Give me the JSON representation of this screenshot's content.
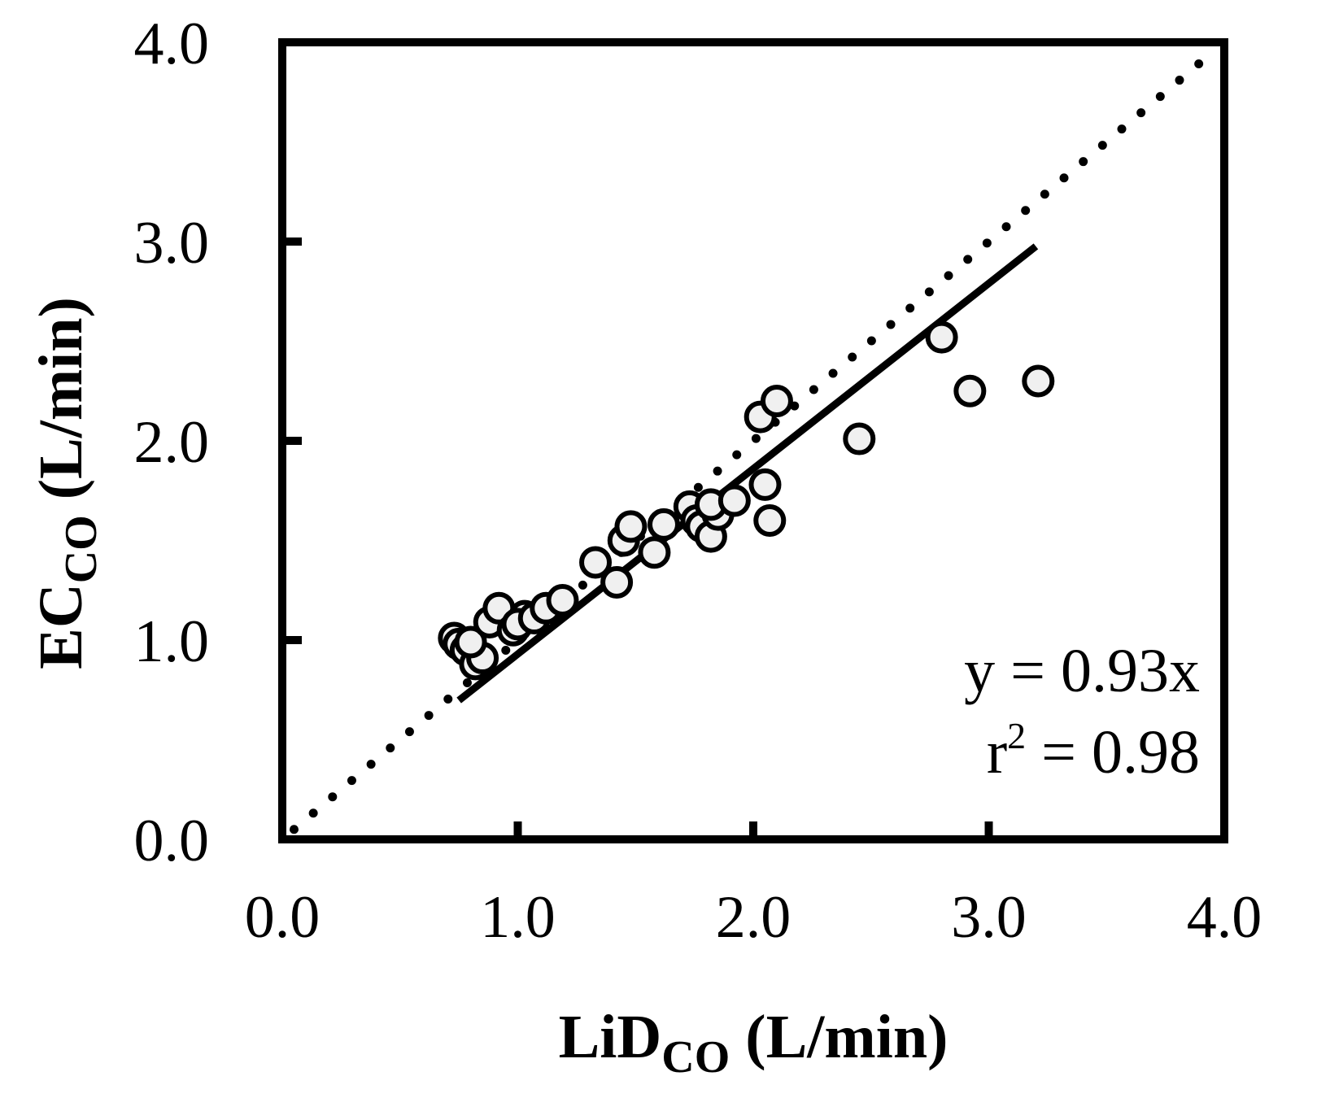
{
  "chart_data": {
    "type": "scatter",
    "xlabel": {
      "main": "LiD",
      "sub": "CO",
      "unit": " (L/min)"
    },
    "ylabel": {
      "main": "EC",
      "sub": "CO",
      "unit": " (L/min)"
    },
    "xlim": [
      0,
      4
    ],
    "ylim": [
      0,
      4
    ],
    "xticks": [
      "0.0",
      "1.0",
      "2.0",
      "3.0",
      "4.0"
    ],
    "yticks": [
      "0.0",
      "1.0",
      "2.0",
      "3.0",
      "4.0"
    ],
    "grid": false,
    "annotations": {
      "equation": "y = 0.93x",
      "r2_prefix": "r",
      "r2_sup": "2",
      "r2_value": " = 0.98"
    },
    "regression_line": {
      "slope": 0.93,
      "x_range": [
        0.75,
        3.2
      ]
    },
    "identity_line": {
      "slope": 1,
      "x_range": [
        0.05,
        3.95
      ],
      "style": "dotted"
    },
    "points": [
      {
        "x": 0.73,
        "y": 1.01
      },
      {
        "x": 0.75,
        "y": 0.98
      },
      {
        "x": 0.78,
        "y": 0.95
      },
      {
        "x": 0.82,
        "y": 0.88
      },
      {
        "x": 0.85,
        "y": 0.91
      },
      {
        "x": 0.8,
        "y": 0.99
      },
      {
        "x": 0.88,
        "y": 1.09
      },
      {
        "x": 0.92,
        "y": 1.16
      },
      {
        "x": 0.98,
        "y": 1.05
      },
      {
        "x": 1.03,
        "y": 1.12
      },
      {
        "x": 1.0,
        "y": 1.08
      },
      {
        "x": 1.07,
        "y": 1.11
      },
      {
        "x": 1.12,
        "y": 1.16
      },
      {
        "x": 1.19,
        "y": 1.2
      },
      {
        "x": 1.33,
        "y": 1.39
      },
      {
        "x": 1.42,
        "y": 1.29
      },
      {
        "x": 1.45,
        "y": 1.5
      },
      {
        "x": 1.48,
        "y": 1.57
      },
      {
        "x": 1.58,
        "y": 1.44
      },
      {
        "x": 1.62,
        "y": 1.58
      },
      {
        "x": 1.73,
        "y": 1.67
      },
      {
        "x": 1.76,
        "y": 1.6
      },
      {
        "x": 1.78,
        "y": 1.57
      },
      {
        "x": 1.82,
        "y": 1.52
      },
      {
        "x": 1.85,
        "y": 1.63
      },
      {
        "x": 1.82,
        "y": 1.68
      },
      {
        "x": 1.92,
        "y": 1.7
      },
      {
        "x": 2.03,
        "y": 2.12
      },
      {
        "x": 2.1,
        "y": 2.2
      },
      {
        "x": 2.05,
        "y": 1.78
      },
      {
        "x": 2.07,
        "y": 1.6
      },
      {
        "x": 2.45,
        "y": 2.01
      },
      {
        "x": 2.8,
        "y": 2.52
      },
      {
        "x": 2.92,
        "y": 2.25
      },
      {
        "x": 3.21,
        "y": 2.3
      }
    ]
  }
}
